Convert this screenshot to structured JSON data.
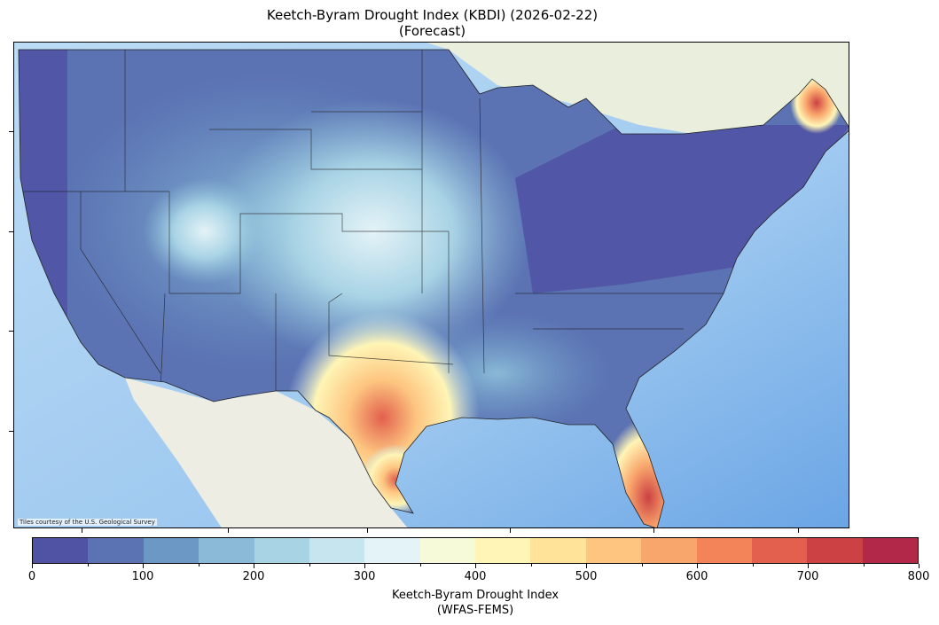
{
  "title": {
    "line1": "Keetch-Byram Drought Index (KBDI) (2026-02-22)",
    "line2": "(Forecast)"
  },
  "map": {
    "attribution": "Tiles courtesy of the U.S. Geological Survey"
  },
  "colorbar": {
    "label_line1": "Keetch-Byram Drought Index",
    "label_line2": "(WFAS-FEMS)",
    "range": [
      0,
      800
    ],
    "levels_step": 50,
    "tick_labels": [
      "0",
      "100",
      "200",
      "300",
      "400",
      "500",
      "600",
      "700",
      "800"
    ],
    "colors": [
      "#5053a4",
      "#5b72b3",
      "#6c98c5",
      "#8abad7",
      "#a8d3e5",
      "#c6e5ef",
      "#e4f3f7",
      "#f6fad8",
      "#fff5b6",
      "#fee398",
      "#fdc580",
      "#f9a66c",
      "#f3845a",
      "#e2604d",
      "#cc4143",
      "#b12848"
    ],
    "colormap": "RdYlBu_r"
  }
}
